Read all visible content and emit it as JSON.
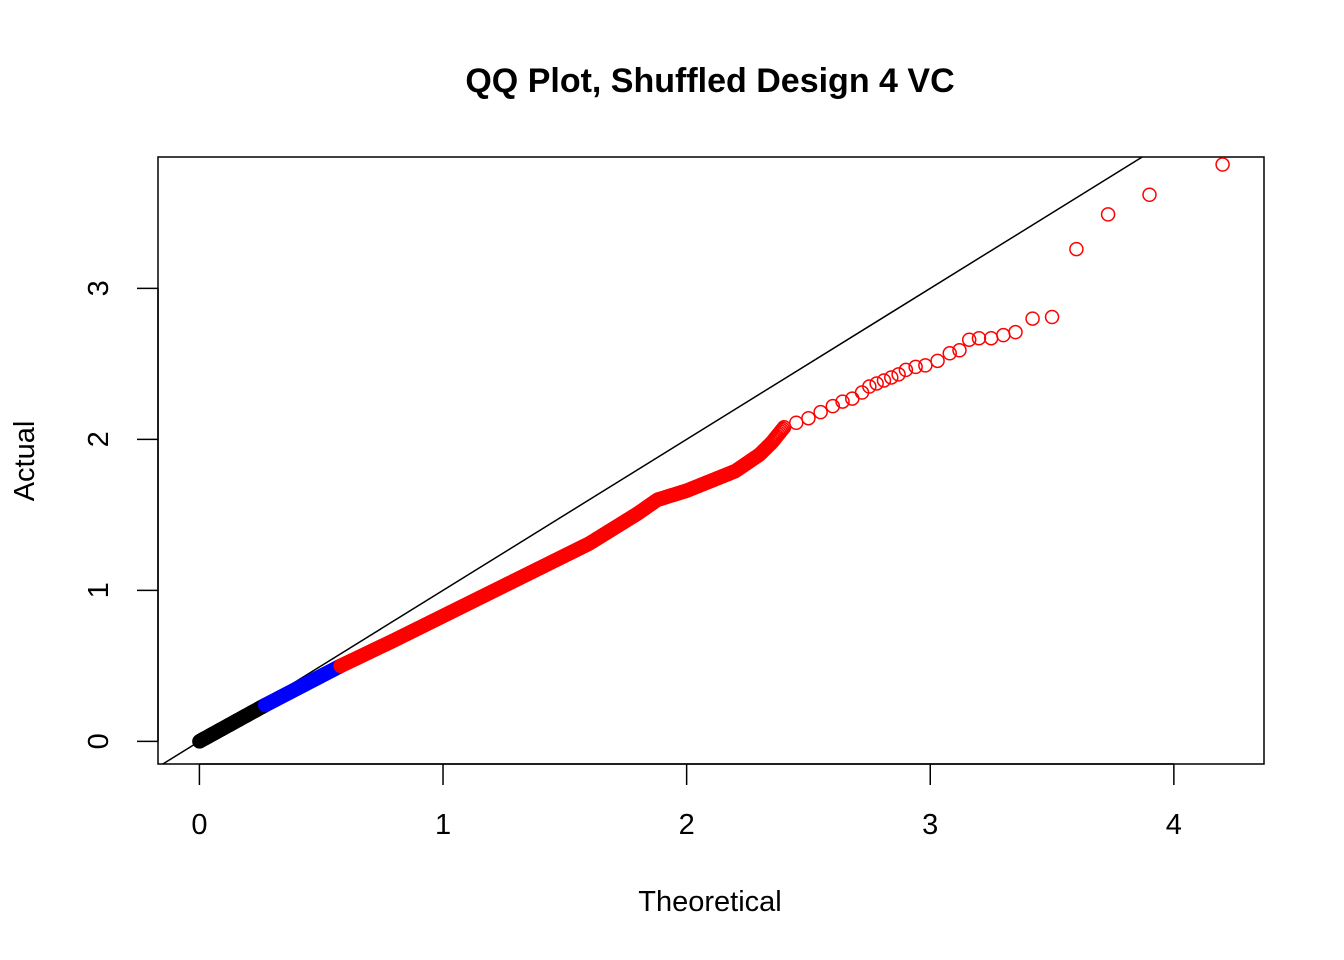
{
  "chart_data": {
    "type": "scatter",
    "title": "QQ Plot, Shuffled Design 4 VC",
    "xlabel": "Theoretical",
    "ylabel": "Actual",
    "xlim": [
      -0.17,
      4.37
    ],
    "ylim": [
      -0.15,
      3.87
    ],
    "x_ticks": [
      "0",
      "1",
      "2",
      "3",
      "4"
    ],
    "y_ticks": [
      "0",
      "1",
      "2",
      "3"
    ],
    "reference_line": {
      "slope": 1,
      "intercept": 0,
      "color": "#000000"
    },
    "grid": false,
    "legend": "none",
    "colors": {
      "low": "#000000",
      "mid": "#0000ff",
      "high": "#ff0000"
    },
    "series": [
      {
        "color": "#000000",
        "curve": [
          [
            0,
            0
          ],
          [
            0.27,
            0.24
          ]
        ],
        "count": 150
      },
      {
        "color": "#0000ff",
        "curve": [
          [
            0.27,
            0.24
          ],
          [
            0.58,
            0.5
          ]
        ],
        "count": 90
      },
      {
        "color": "#ff0000",
        "curve": [
          [
            0.58,
            0.5
          ],
          [
            0.8,
            0.67
          ],
          [
            1.0,
            0.83
          ],
          [
            1.2,
            0.99
          ],
          [
            1.4,
            1.15
          ],
          [
            1.6,
            1.31
          ],
          [
            1.8,
            1.51
          ],
          [
            1.88,
            1.6
          ],
          [
            2.0,
            1.66
          ],
          [
            2.2,
            1.79
          ],
          [
            2.3,
            1.9
          ],
          [
            2.35,
            1.98
          ],
          [
            2.4,
            2.08
          ]
        ],
        "count": 380
      },
      {
        "color": "#ff0000",
        "x": [
          2.45,
          2.5,
          2.55,
          2.6,
          2.64,
          2.68,
          2.72,
          2.75,
          2.78,
          2.81,
          2.84,
          2.87,
          2.9,
          2.94,
          2.98,
          3.03,
          3.08,
          3.12,
          3.16,
          3.2,
          3.25,
          3.3,
          3.35,
          3.42,
          3.5,
          3.6,
          3.73,
          3.9,
          4.2
        ],
        "y": [
          2.11,
          2.14,
          2.18,
          2.22,
          2.25,
          2.27,
          2.31,
          2.35,
          2.37,
          2.39,
          2.41,
          2.43,
          2.46,
          2.48,
          2.49,
          2.52,
          2.57,
          2.59,
          2.66,
          2.67,
          2.67,
          2.69,
          2.71,
          2.8,
          2.81,
          3.26,
          3.49,
          3.62,
          3.82
        ]
      }
    ]
  }
}
